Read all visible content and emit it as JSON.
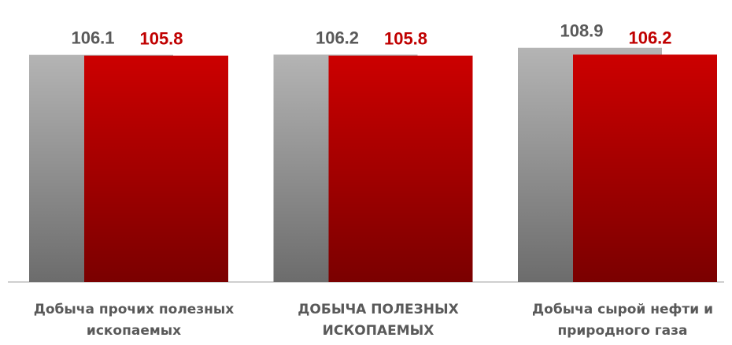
{
  "chart_data": {
    "type": "bar",
    "categories": [
      [
        "Добыча прочих полезных",
        "ископаемых"
      ],
      [
        "ДОБЫЧА ПОЛЕЗНЫХ",
        "ИСКОПАЕМЫХ"
      ],
      [
        "Добыча сырой нефти и",
        "природного газа"
      ]
    ],
    "series": [
      {
        "color": "#b4b4b4",
        "label_color": "#595959",
        "values": [
          106.1,
          106.2,
          108.9
        ]
      },
      {
        "color": "#cc0000",
        "label_color": "#c00000",
        "values": [
          105.8,
          105.8,
          106.2
        ]
      }
    ],
    "ylim": [
      16,
      112
    ],
    "grid": false
  }
}
